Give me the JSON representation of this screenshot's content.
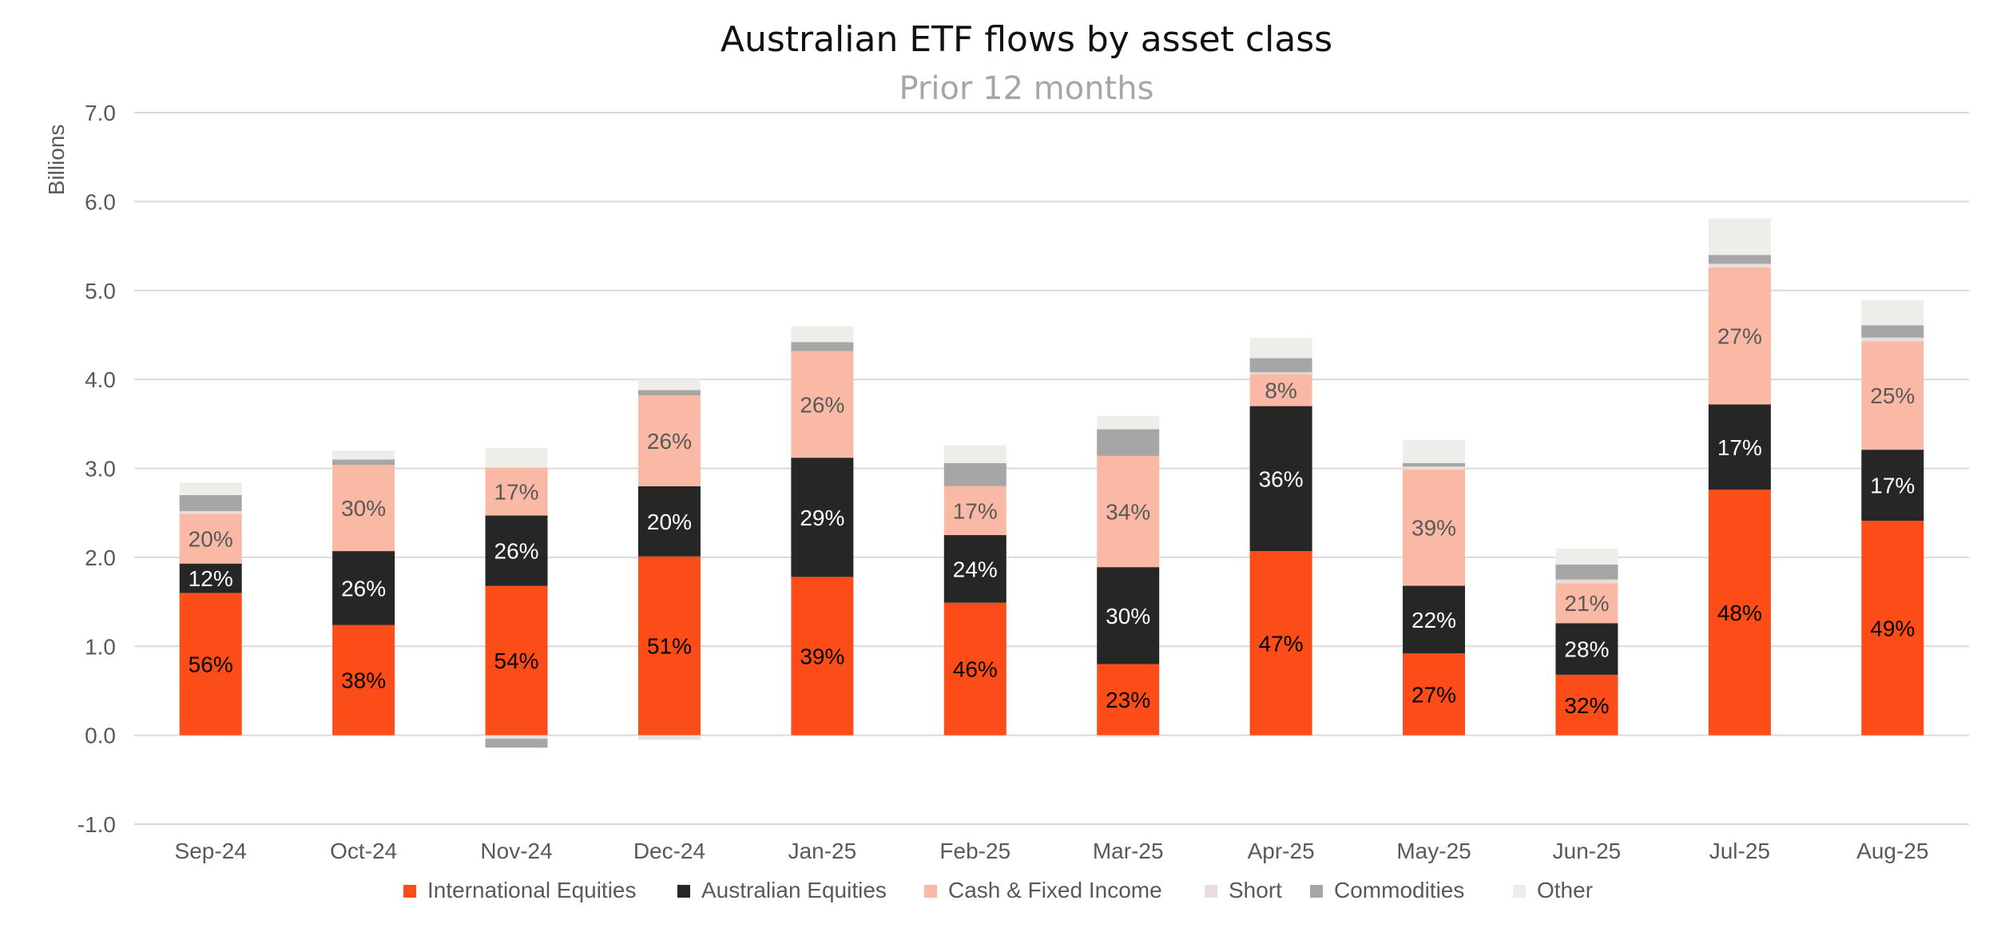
{
  "chart_data": {
    "type": "bar",
    "stacked": true,
    "title": "Australian ETF flows by asset class",
    "subtitle": "Prior 12 months",
    "ylabel": "Billions",
    "xlabel": "",
    "ylim": [
      -1.0,
      7.0
    ],
    "yticks": [
      "7.0",
      "6.0",
      "5.0",
      "4.0",
      "3.0",
      "2.0",
      "1.0",
      "0.0",
      "-1.0"
    ],
    "grid": true,
    "legend_position": "bottom",
    "categories": [
      "Sep-24",
      "Oct-24",
      "Nov-24",
      "Dec-24",
      "Jan-25",
      "Feb-25",
      "Mar-25",
      "Apr-25",
      "May-25",
      "Jun-25",
      "Jul-25",
      "Aug-25"
    ],
    "series": [
      {
        "name": "International Equities",
        "color": "#fc4c17",
        "label_color": "#000000",
        "values": [
          1.6,
          1.24,
          1.68,
          2.01,
          1.78,
          1.49,
          0.8,
          2.07,
          0.92,
          0.68,
          2.76,
          2.41
        ],
        "labels": [
          "56%",
          "38%",
          "54%",
          "51%",
          "39%",
          "46%",
          "23%",
          "47%",
          "27%",
          "32%",
          "48%",
          "49%"
        ]
      },
      {
        "name": "Australian Equities",
        "color": "#262626",
        "label_color": "#ffffff",
        "values": [
          0.33,
          0.83,
          0.79,
          0.79,
          1.34,
          0.76,
          1.09,
          1.63,
          0.76,
          0.58,
          0.96,
          0.8
        ],
        "labels": [
          "12%",
          "26%",
          "26%",
          "20%",
          "29%",
          "24%",
          "30%",
          "36%",
          "22%",
          "28%",
          "17%",
          "17%"
        ]
      },
      {
        "name": "Cash & Fixed Income",
        "color": "#fab9a4",
        "label_color": "#595959",
        "values": [
          0.56,
          0.97,
          0.54,
          1.02,
          1.2,
          0.55,
          1.25,
          0.36,
          1.31,
          0.45,
          1.54,
          1.22
        ],
        "labels": [
          "20%",
          "30%",
          "17%",
          "26%",
          "26%",
          "17%",
          "34%",
          "8%",
          "39%",
          "21%",
          "27%",
          "25%"
        ]
      },
      {
        "name": "Short",
        "color": "#e8dede",
        "values": [
          0.03,
          0.0,
          -0.04,
          -0.05,
          0.0,
          0.0,
          -0.02,
          0.02,
          0.03,
          0.04,
          0.04,
          0.04
        ]
      },
      {
        "name": "Commodities",
        "color": "#a6a6a6",
        "values": [
          0.18,
          0.06,
          -0.1,
          0.06,
          0.1,
          0.26,
          0.3,
          0.16,
          0.04,
          0.17,
          0.1,
          0.14
        ]
      },
      {
        "name": "Other",
        "color": "#eeede9",
        "values": [
          0.14,
          0.1,
          0.22,
          0.12,
          0.18,
          0.2,
          0.15,
          0.23,
          0.26,
          0.18,
          0.41,
          0.28
        ]
      }
    ]
  }
}
